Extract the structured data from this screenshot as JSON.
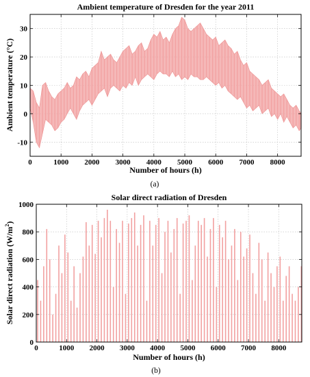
{
  "chart_data": [
    {
      "type": "line",
      "title": "Ambient temperature of Dresden for the year 2011",
      "xlabel": "Number of hours (h)",
      "ylabel": "Ambient temperature (°C)",
      "xlim": [
        0,
        8760
      ],
      "ylim": [
        -15,
        35
      ],
      "grid": true,
      "color": "#f2a0a0",
      "x_ticks": [
        0,
        1000,
        2000,
        3000,
        4000,
        5000,
        6000,
        7000,
        8000
      ],
      "y_ticks": [
        -10,
        0,
        10,
        20,
        30
      ],
      "caption": "(a)",
      "x": [
        0,
        100,
        200,
        300,
        400,
        500,
        600,
        700,
        800,
        900,
        1000,
        1100,
        1200,
        1300,
        1400,
        1500,
        1600,
        1700,
        1800,
        1900,
        2000,
        2100,
        2200,
        2300,
        2400,
        2500,
        2600,
        2700,
        2800,
        2900,
        3000,
        3100,
        3200,
        3300,
        3400,
        3500,
        3600,
        3700,
        3800,
        3900,
        4000,
        4100,
        4200,
        4300,
        4400,
        4500,
        4600,
        4700,
        4800,
        4900,
        5000,
        5100,
        5200,
        5300,
        5400,
        5500,
        5600,
        5700,
        5800,
        5900,
        6000,
        6100,
        6200,
        6300,
        6400,
        6500,
        6600,
        6700,
        6800,
        6900,
        7000,
        7100,
        7200,
        7300,
        7400,
        7500,
        7600,
        7700,
        7800,
        7900,
        8000,
        8100,
        8200,
        8300,
        8400,
        8500,
        8600,
        8700,
        8760
      ],
      "y_min": [
        2,
        -3,
        -10,
        -12,
        -7,
        -2,
        -3,
        -4,
        -6,
        -5,
        -3,
        -2,
        0,
        2,
        0,
        -2,
        1,
        3,
        4,
        5,
        3,
        5,
        7,
        8,
        9,
        6,
        9,
        10,
        9,
        8,
        10,
        9,
        11,
        10,
        13,
        10,
        12,
        13,
        14,
        13,
        12,
        14,
        15,
        14,
        14,
        13,
        15,
        13,
        14,
        12,
        13,
        12,
        14,
        13,
        13,
        12,
        12,
        13,
        12,
        11,
        10,
        11,
        9,
        10,
        8,
        7,
        6,
        5,
        6,
        4,
        2,
        3,
        1,
        2,
        3,
        0,
        1,
        2,
        -1,
        0,
        -2,
        0,
        -3,
        -1,
        -3,
        -5,
        -4,
        -6,
        -5
      ],
      "y_max": [
        9,
        8,
        4,
        2,
        10,
        11,
        8,
        6,
        5,
        7,
        8,
        9,
        11,
        9,
        10,
        13,
        12,
        14,
        15,
        13,
        16,
        17,
        18,
        22,
        19,
        20,
        21,
        19,
        18,
        20,
        22,
        23,
        24,
        21,
        22,
        24,
        25,
        22,
        23,
        26,
        28,
        27,
        29,
        26,
        27,
        25,
        28,
        30,
        31,
        34,
        33,
        30,
        29,
        30,
        31,
        32,
        30,
        28,
        27,
        26,
        27,
        24,
        25,
        26,
        24,
        23,
        21,
        22,
        19,
        17,
        18,
        15,
        14,
        13,
        12,
        10,
        11,
        12,
        9,
        8,
        7,
        6,
        7,
        5,
        3,
        2,
        3,
        1,
        0
      ]
    },
    {
      "type": "bar",
      "title": "Solar direct radiation of Dresden",
      "xlabel": "Number of hours (h)",
      "ylabel": "Solar direct radiation (W/m",
      "ylabel_sup": "2",
      "ylabel_tail": ")",
      "xlim": [
        0,
        8760
      ],
      "ylim": [
        0,
        1000
      ],
      "grid": true,
      "color": "#f2a0a0",
      "x_ticks": [
        0,
        1000,
        2000,
        3000,
        4000,
        5000,
        6000,
        7000,
        8000
      ],
      "y_ticks": [
        0,
        200,
        400,
        600,
        800,
        1000
      ],
      "caption": "(b)",
      "x": [
        0,
        100,
        200,
        300,
        400,
        500,
        600,
        700,
        800,
        900,
        1000,
        1100,
        1200,
        1300,
        1400,
        1500,
        1600,
        1700,
        1800,
        1900,
        2000,
        2100,
        2200,
        2300,
        2400,
        2500,
        2600,
        2700,
        2800,
        2900,
        3000,
        3100,
        3200,
        3300,
        3400,
        3500,
        3600,
        3700,
        3800,
        3900,
        4000,
        4100,
        4200,
        4300,
        4400,
        4500,
        4600,
        4700,
        4800,
        4900,
        5000,
        5100,
        5200,
        5300,
        5400,
        5500,
        5600,
        5700,
        5800,
        5900,
        6000,
        6100,
        6200,
        6300,
        6400,
        6500,
        6600,
        6700,
        6800,
        6900,
        7000,
        7100,
        7200,
        7300,
        7400,
        7500,
        7600,
        7700,
        7800,
        7900,
        8000,
        8100,
        8200,
        8300,
        8400,
        8500,
        8600,
        8700
      ],
      "values": [
        450,
        300,
        550,
        820,
        600,
        200,
        350,
        700,
        500,
        780,
        650,
        300,
        550,
        250,
        500,
        620,
        870,
        700,
        850,
        640,
        880,
        760,
        900,
        960,
        880,
        400,
        820,
        720,
        880,
        350,
        860,
        900,
        940,
        700,
        850,
        920,
        300,
        880,
        700,
        850,
        900,
        500,
        800,
        880,
        650,
        820,
        900,
        350,
        860,
        880,
        920,
        450,
        700,
        880,
        850,
        900,
        620,
        820,
        900,
        400,
        850,
        760,
        880,
        600,
        700,
        820,
        450,
        800,
        620,
        680,
        780,
        500,
        350,
        720,
        600,
        300,
        650,
        500,
        400,
        550,
        620,
        300,
        480,
        550,
        350,
        300,
        400,
        550
      ]
    }
  ]
}
